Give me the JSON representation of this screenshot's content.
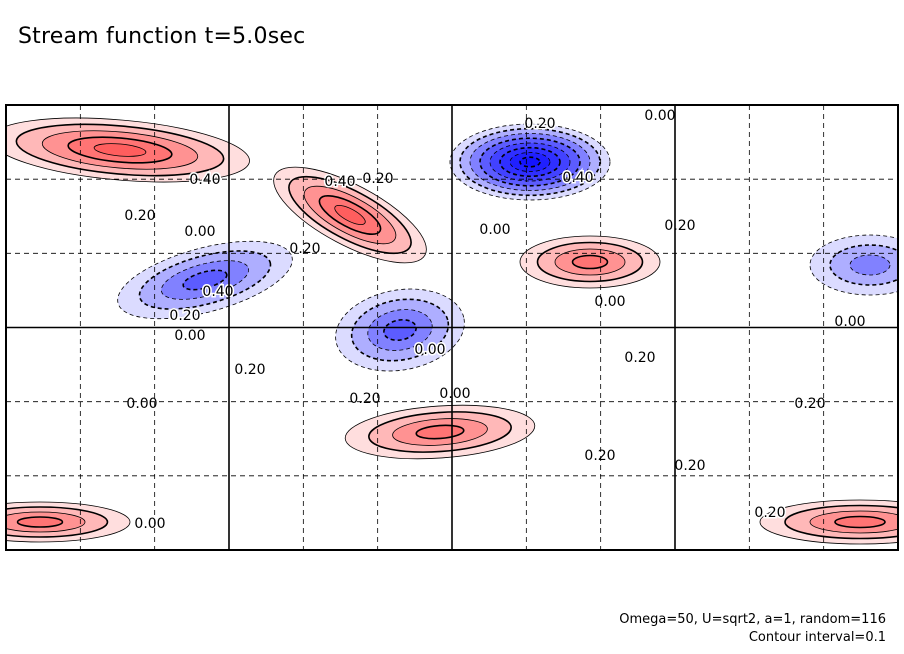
{
  "title": "Stream function t=5.0sec",
  "footer": {
    "params": "Omega=50, U=sqrt2, a=1, random=116",
    "contour_interval": "Contour interval=0.1"
  },
  "colors": {
    "positive": "#ff4d4d",
    "negative": "#2a2aff",
    "contour": "#000000",
    "grid": "#000000"
  },
  "chart_data": {
    "type": "heatmap",
    "variable": "Stream function",
    "time": "t=5.0sec",
    "contour_interval": 0.1,
    "levels_range": [
      -0.8,
      0.6
    ],
    "grid": "4 major columns x 2 major rows, dashed minor lines",
    "contour_labels": [
      "0.20",
      "0.00",
      "0.40",
      "0.20",
      "0.40",
      "0.20",
      "0.20",
      "0.40",
      "0.00",
      "0.00",
      "0.20",
      "0.40",
      "0.00",
      "0.20",
      "0.00",
      "0.00",
      "0.20",
      "0.20",
      "0.00",
      "0.20",
      "0.00",
      "0.00",
      "0.20",
      "0.20",
      "0.20",
      "0.00",
      "0.20"
    ],
    "extrema": [
      {
        "sign": "negative",
        "value": -0.8,
        "location": "top-center"
      },
      {
        "sign": "positive",
        "value": 0.5,
        "location": "top-left"
      },
      {
        "sign": "positive",
        "value": 0.5,
        "location": "upper-left-center"
      },
      {
        "sign": "positive",
        "value": 0.4,
        "location": "center-right"
      },
      {
        "sign": "positive",
        "value": 0.4,
        "location": "lower-center"
      },
      {
        "sign": "positive",
        "value": 0.4,
        "location": "bottom-right"
      },
      {
        "sign": "positive",
        "value": 0.4,
        "location": "bottom-left"
      },
      {
        "sign": "negative",
        "value": -0.4,
        "location": "center"
      },
      {
        "sign": "negative",
        "value": -0.4,
        "location": "left-middle"
      },
      {
        "sign": "negative",
        "value": -0.3,
        "location": "right-middle"
      }
    ]
  }
}
